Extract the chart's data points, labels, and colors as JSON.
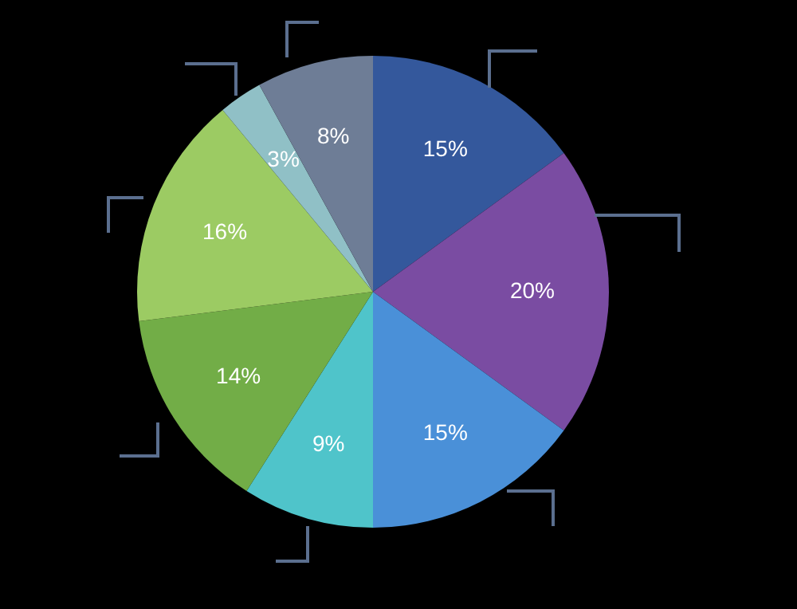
{
  "chart_data": {
    "type": "pie",
    "categories": [
      null,
      null,
      null,
      null,
      null,
      null,
      null,
      null
    ],
    "values": [
      15,
      20,
      15,
      9,
      14,
      16,
      3,
      8
    ],
    "value_labels": [
      "15%",
      "20%",
      "15%",
      "9%",
      "14%",
      "16%",
      "3%",
      "8%"
    ],
    "colors": [
      "#34589c",
      "#7a4ca2",
      "#4a90d8",
      "#4fc4ca",
      "#72ad47",
      "#9ccb63",
      "#90c0c6",
      "#6e7d96"
    ]
  }
}
